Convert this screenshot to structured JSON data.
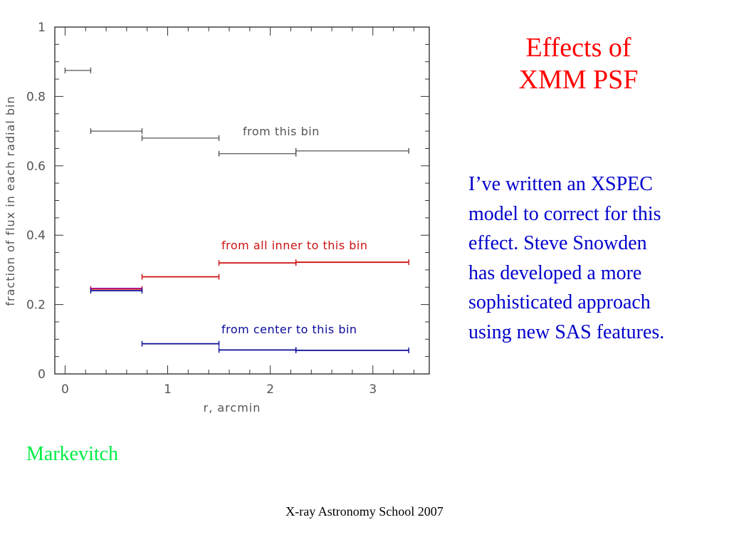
{
  "slide": {
    "title_lines": [
      "Effects of",
      "XMM PSF"
    ],
    "body_lines": [
      "I’ve written an XSPEC",
      "model to correct for this",
      "effect. Steve Snowden",
      "has developed a more",
      "sophisticated approach",
      "using new SAS features."
    ],
    "author": "Markevitch",
    "footer": "X-ray Astronomy School 2007"
  },
  "colors": {
    "title": "#ff0000",
    "body": "#0000cc",
    "author": "#00ee44",
    "series_this_bin": "#555555",
    "series_inner": "#cc1111",
    "series_center": "#0a0a99",
    "inner_overlay": "#9900cc"
  },
  "chart_data": {
    "type": "line",
    "style": "horizontal error bars (step bins)",
    "xlabel": "r, arcmin",
    "ylabel": "fraction of flux in each radial bin",
    "xlim": [
      -0.1,
      3.55
    ],
    "ylim": [
      0,
      1
    ],
    "x_ticks": [
      "0",
      "1",
      "2",
      "3"
    ],
    "x_tick_values": [
      0,
      1,
      2,
      3
    ],
    "y_ticks": [
      "0",
      "0.2",
      "0.4",
      "0.6",
      "0.8",
      "1"
    ],
    "y_tick_values": [
      0,
      0.2,
      0.4,
      0.6,
      0.8,
      1
    ],
    "grid": false,
    "series": [
      {
        "name": "from this bin",
        "color_key": "series_this_bin",
        "bins": [
          {
            "x0": 0,
            "x1": 0.25,
            "y": 0.875
          },
          {
            "x0": 0.25,
            "x1": 0.75,
            "y": 0.7
          },
          {
            "x0": 0.75,
            "x1": 1.5,
            "y": 0.68
          },
          {
            "x0": 1.5,
            "x1": 2.25,
            "y": 0.635
          },
          {
            "x0": 2.25,
            "x1": 3.35,
            "y": 0.643
          }
        ]
      },
      {
        "name": "from all inner to this bin",
        "color_key": "series_inner",
        "bins": [
          {
            "x0": 0.25,
            "x1": 0.75,
            "y": 0.245
          },
          {
            "x0": 0.75,
            "x1": 1.5,
            "y": 0.28
          },
          {
            "x0": 1.5,
            "x1": 2.25,
            "y": 0.32
          },
          {
            "x0": 2.25,
            "x1": 3.35,
            "y": 0.322
          }
        ]
      },
      {
        "name": "from center to this bin",
        "color_key": "series_center",
        "bins": [
          {
            "x0": 0.25,
            "x1": 0.75,
            "y": 0.24
          },
          {
            "x0": 0.75,
            "x1": 1.5,
            "y": 0.087
          },
          {
            "x0": 1.5,
            "x1": 2.25,
            "y": 0.069
          },
          {
            "x0": 2.25,
            "x1": 3.35,
            "y": 0.068
          }
        ]
      }
    ]
  }
}
